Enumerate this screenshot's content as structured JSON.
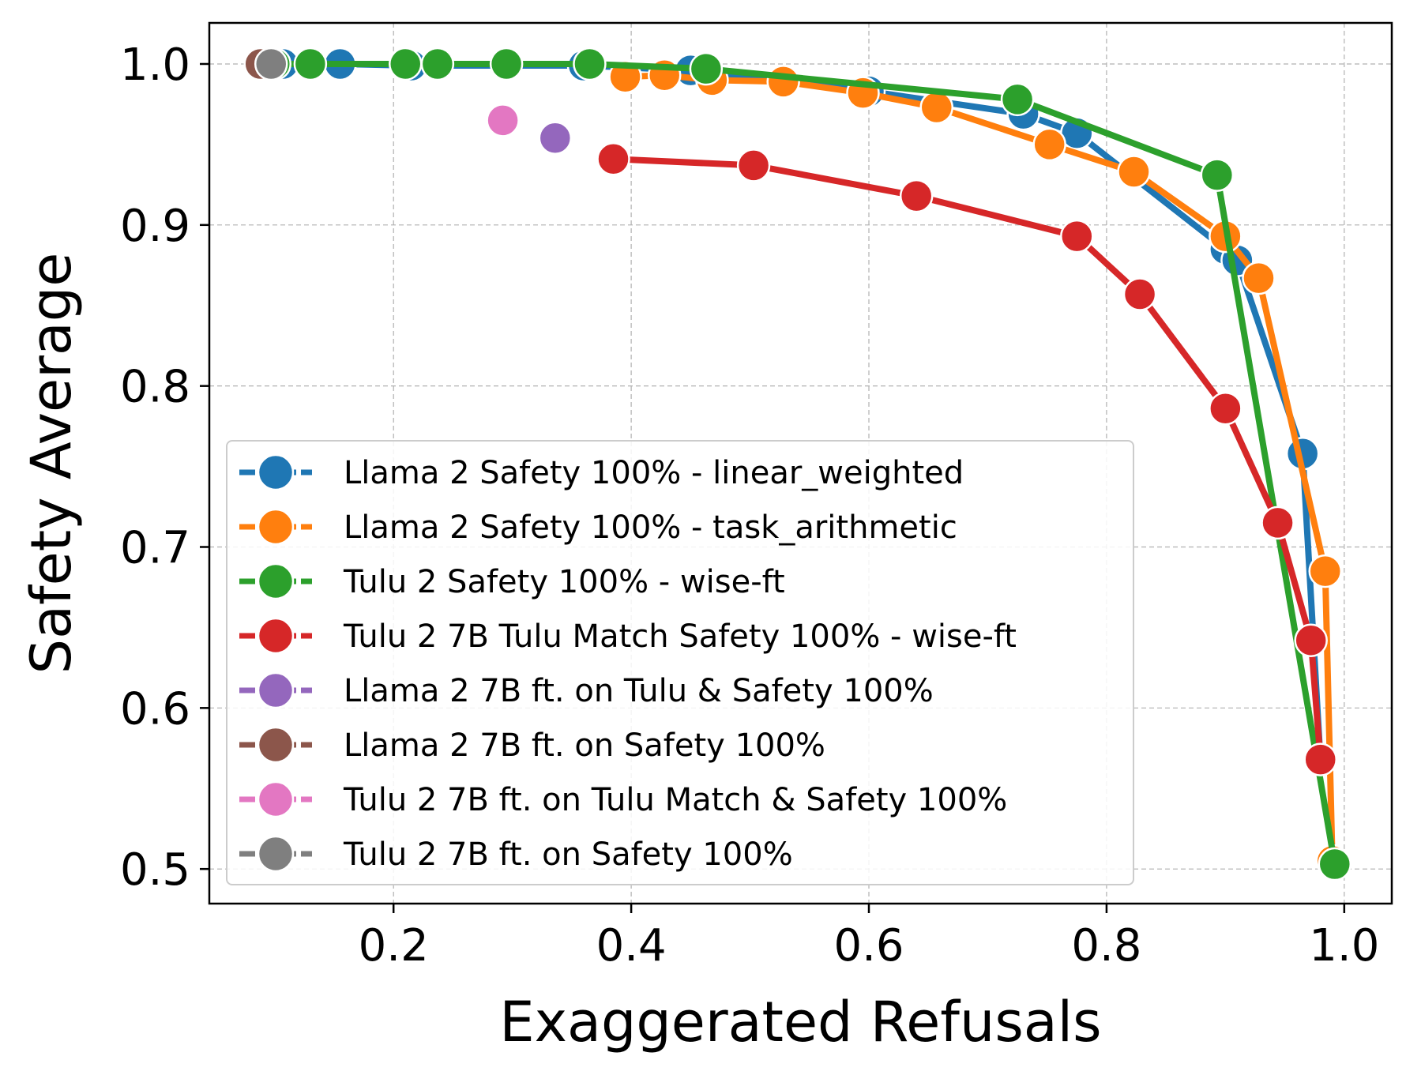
{
  "chart_data": {
    "type": "line",
    "title": "",
    "xlabel": "Exaggerated Refusals",
    "ylabel": "Safety Average",
    "xlim": [
      0.045,
      1.04
    ],
    "ylim": [
      0.4785,
      1.0255
    ],
    "xticks": [
      0.2,
      0.4,
      0.6,
      0.8,
      1.0
    ],
    "xtick_labels": [
      "0.2",
      "0.4",
      "0.6",
      "0.8",
      "1.0"
    ],
    "yticks": [
      0.5,
      0.6,
      0.7,
      0.8,
      0.9,
      1.0
    ],
    "ytick_labels": [
      "0.5",
      "0.6",
      "0.7",
      "0.8",
      "0.9",
      "1.0"
    ],
    "grid": true,
    "legend_position": "lower-left",
    "series": [
      {
        "name": "Llama 2 Safety 100% - linear_weighted",
        "color": "#1f77b4",
        "points": [
          [
            0.09,
            1.0
          ],
          [
            0.107,
            1.0
          ],
          [
            0.155,
            1.0
          ],
          [
            0.215,
            0.999
          ],
          [
            0.36,
            0.999
          ],
          [
            0.45,
            0.996
          ],
          [
            0.6,
            0.983
          ],
          [
            0.73,
            0.969
          ],
          [
            0.775,
            0.957
          ],
          [
            0.9,
            0.885
          ],
          [
            0.91,
            0.878
          ],
          [
            0.965,
            0.758
          ],
          [
            0.98,
            0.567
          ]
        ]
      },
      {
        "name": "Llama 2 Safety 100% - task_arithmetic",
        "color": "#ff7f0e",
        "points": [
          [
            0.395,
            0.992
          ],
          [
            0.428,
            0.993
          ],
          [
            0.468,
            0.99
          ],
          [
            0.528,
            0.989
          ],
          [
            0.595,
            0.982
          ],
          [
            0.657,
            0.973
          ],
          [
            0.752,
            0.95
          ],
          [
            0.823,
            0.933
          ],
          [
            0.9,
            0.893
          ],
          [
            0.928,
            0.867
          ],
          [
            0.984,
            0.685
          ],
          [
            0.99,
            0.505
          ]
        ]
      },
      {
        "name": "Tulu 2 Safety 100% - wise-ft",
        "color": "#2ca02c",
        "points": [
          [
            0.1,
            1.0
          ],
          [
            0.13,
            1.0
          ],
          [
            0.21,
            1.0
          ],
          [
            0.237,
            1.0
          ],
          [
            0.295,
            1.0
          ],
          [
            0.365,
            1.0
          ],
          [
            0.463,
            0.997
          ],
          [
            0.725,
            0.978
          ],
          [
            0.893,
            0.931
          ],
          [
            0.992,
            0.503
          ]
        ]
      },
      {
        "name": "Tulu 2 7B Tulu Match Safety 100% - wise-ft",
        "color": "#d62728",
        "points": [
          [
            0.385,
            0.941
          ],
          [
            0.503,
            0.937
          ],
          [
            0.64,
            0.918
          ],
          [
            0.775,
            0.893
          ],
          [
            0.828,
            0.857
          ],
          [
            0.9,
            0.786
          ],
          [
            0.944,
            0.715
          ],
          [
            0.972,
            0.642
          ],
          [
            0.98,
            0.568
          ]
        ]
      },
      {
        "name": "Llama 2 7B ft. on Tulu & Safety 100%",
        "color": "#9467bd",
        "points": [
          [
            0.336,
            0.954
          ]
        ]
      },
      {
        "name": "Llama 2 7B ft. on Safety 100%",
        "color": "#8c564b",
        "points": [
          [
            0.088,
            1.0
          ]
        ]
      },
      {
        "name": "Tulu 2 7B ft. on Tulu Match & Safety 100%",
        "color": "#e377c2",
        "points": [
          [
            0.292,
            0.965
          ]
        ]
      },
      {
        "name": "Tulu 2 7B ft. on Safety 100%",
        "color": "#7f7f7f",
        "points": [
          [
            0.097,
            1.0
          ]
        ]
      }
    ]
  }
}
